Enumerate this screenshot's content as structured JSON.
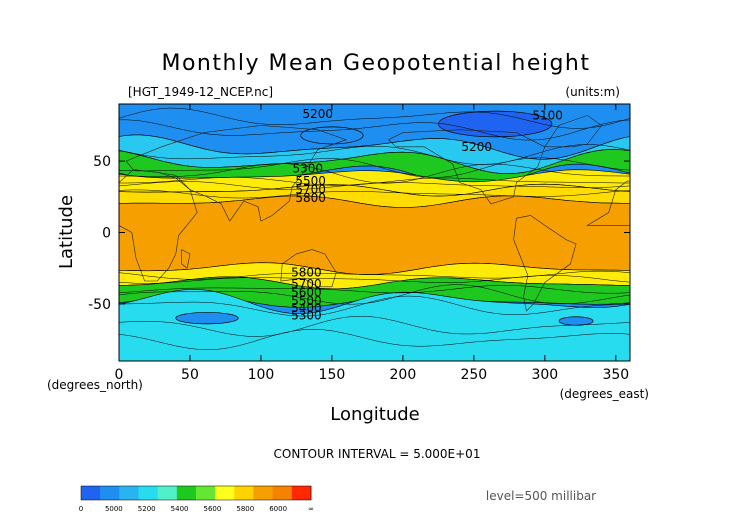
{
  "chart_data": {
    "type": "contour-map",
    "title": "Monthly Mean Geopotential height",
    "file_label": "[HGT_1949-12_NCEP.nc]",
    "units_label": "(units:m)",
    "xlabel": "Longitude",
    "ylabel": "Latitude",
    "x_unit_label": "(degrees_east)",
    "y_unit_label": "(degrees_north)",
    "xlim": [
      0,
      360
    ],
    "ylim": [
      -90,
      90
    ],
    "x_ticks": [
      0,
      50,
      100,
      150,
      200,
      250,
      300,
      350
    ],
    "y_ticks": [
      -50,
      0,
      50
    ],
    "contour_interval": "CONTOUR INTERVAL = 5.000E+01",
    "level": "level=500 millibar",
    "contour_labels": [
      {
        "text": "5200",
        "lon": 140,
        "lat": 83
      },
      {
        "text": "5100",
        "lon": 302,
        "lat": 82
      },
      {
        "text": "5200",
        "lon": 252,
        "lat": 60
      },
      {
        "text": "5300",
        "lon": 133,
        "lat": 45
      },
      {
        "text": "5500",
        "lon": 135,
        "lat": 36
      },
      {
        "text": "5700",
        "lon": 135,
        "lat": 30
      },
      {
        "text": "5800",
        "lon": 135,
        "lat": 24
      },
      {
        "text": "5800",
        "lon": 132,
        "lat": -28
      },
      {
        "text": "5700",
        "lon": 132,
        "lat": -36
      },
      {
        "text": "5600",
        "lon": 132,
        "lat": -42
      },
      {
        "text": "5500",
        "lon": 132,
        "lat": -48
      },
      {
        "text": "5400",
        "lon": 132,
        "lat": -53
      },
      {
        "text": "5300",
        "lon": 132,
        "lat": -58
      }
    ],
    "bands": [
      {
        "lat_top": 90,
        "lat_bottom": 60,
        "value_range": "5000-5200",
        "color": "#1e8ff0"
      },
      {
        "lat_top": 60,
        "lat_bottom": 50,
        "value_range": "5200-5400",
        "color": "#28c8f0"
      },
      {
        "lat_top": 50,
        "lat_bottom": 40,
        "value_range": "5400-5600",
        "color": "#1ec81e"
      },
      {
        "lat_top": 40,
        "lat_bottom": 30,
        "value_range": "5600-5800",
        "color": "#ffeb0a"
      },
      {
        "lat_top": 30,
        "lat_bottom": 22,
        "value_range": "5600-5800",
        "color": "#ffdc00"
      },
      {
        "lat_top": 22,
        "lat_bottom": -25,
        "value_range": "5800-6000",
        "color": "#f5a000"
      },
      {
        "lat_top": -25,
        "lat_bottom": -35,
        "value_range": "5600-5800",
        "color": "#ffeb0a"
      },
      {
        "lat_top": -35,
        "lat_bottom": -48,
        "value_range": "5400-5600",
        "color": "#1ec81e"
      },
      {
        "lat_top": -48,
        "lat_bottom": -90,
        "value_range": "5200-5400",
        "color": "#28dcf0"
      }
    ],
    "colorbar": {
      "labels": [
        "0",
        "5000",
        "5200",
        "5400",
        "5600",
        "5800",
        "6000",
        "∞"
      ],
      "colors": [
        "#1e64f0",
        "#1e8ff0",
        "#28b4f0",
        "#28dcf0",
        "#50f0c8",
        "#1ec81e",
        "#64e632",
        "#ffff1e",
        "#ffd200",
        "#f5a000",
        "#f58200",
        "#ff2800"
      ]
    }
  }
}
